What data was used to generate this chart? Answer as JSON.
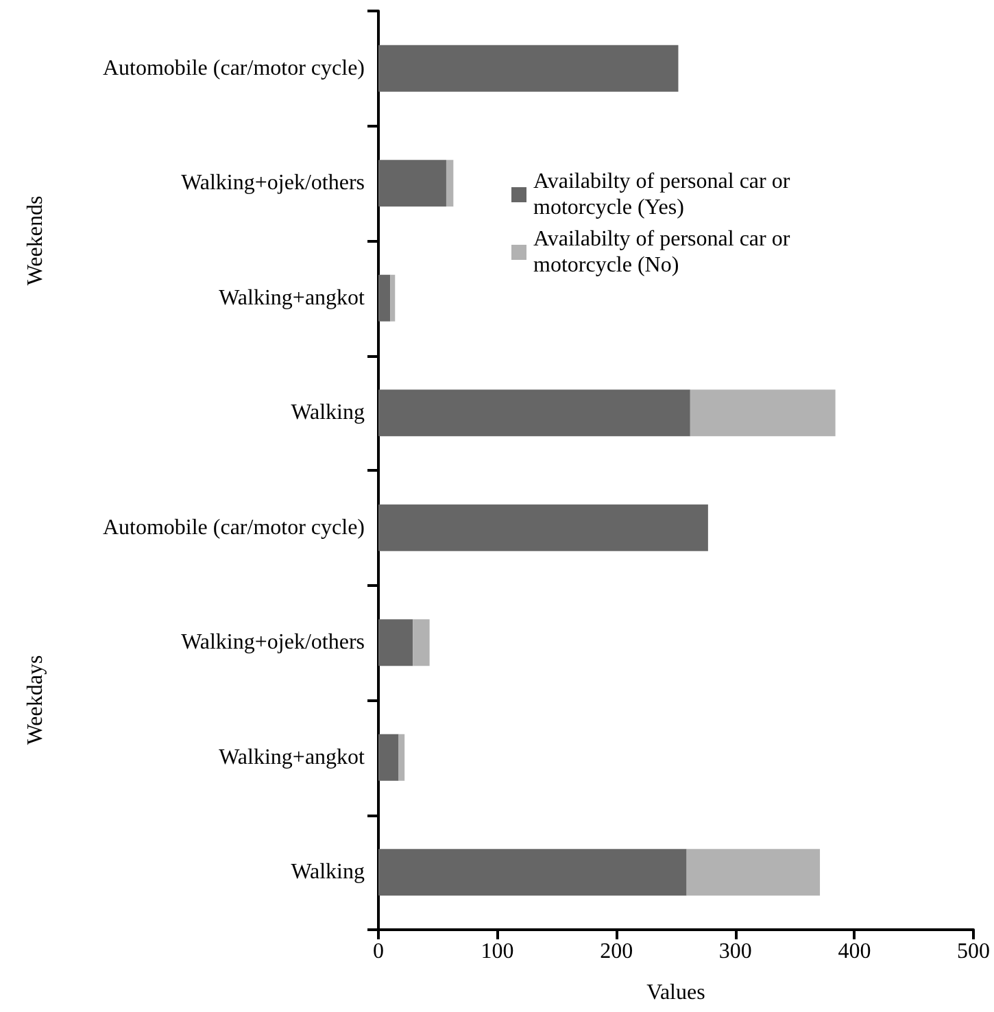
{
  "chart_data": {
    "type": "bar",
    "orientation": "horizontal",
    "stacked": true,
    "categories": [
      "Automobile (car/motor cycle)",
      "Walking+ojek/others",
      "Walking+angkot",
      "Walking",
      "Automobile (car/motor cycle)",
      "Walking+ojek/others",
      "Walking+angkot",
      "Walking"
    ],
    "series": [
      {
        "name": "Availabilty of personal car or motorcycle (Yes)",
        "color": "#666666",
        "values": [
          252,
          57,
          10,
          262,
          277,
          29,
          17,
          259
        ]
      },
      {
        "name": "Availabilty of personal car or motorcycle (No)",
        "color": "#b2b2b2",
        "values": [
          0,
          6,
          4,
          122,
          0,
          14,
          5,
          112
        ]
      }
    ],
    "xlabel": "Values",
    "xlim": [
      0,
      500
    ],
    "xticks": [
      0,
      100,
      200,
      300,
      400,
      500
    ],
    "annotations": [
      "Weekends",
      "Weekdays"
    ],
    "grid": false,
    "legend": "top right"
  }
}
